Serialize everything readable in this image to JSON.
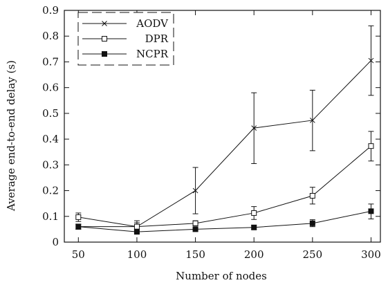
{
  "chart_data": {
    "type": "line",
    "title": "",
    "xlabel": "Number of nodes",
    "ylabel": "Average end-to-end delay (s)",
    "x": [
      50,
      100,
      150,
      200,
      250,
      300
    ],
    "xticks": [
      "50",
      "100",
      "150",
      "200",
      "250",
      "300"
    ],
    "yticks": [
      "0",
      "0.1",
      "0.2",
      "0.3",
      "0.4",
      "0.5",
      "0.6",
      "0.7",
      "0.8",
      "0.9"
    ],
    "xlim": [
      38,
      308
    ],
    "ylim": [
      0,
      0.9
    ],
    "grid": false,
    "legend_position": "top-left",
    "series": [
      {
        "name": "AODV",
        "marker": "x",
        "values": [
          0.06,
          0.06,
          0.2,
          0.443,
          0.473,
          0.705
        ],
        "error_low": [
          0.05,
          0.045,
          0.11,
          0.305,
          0.355,
          0.57
        ],
        "error_high": [
          0.07,
          0.075,
          0.29,
          0.58,
          0.59,
          0.84
        ]
      },
      {
        "name": "DPR",
        "marker": "open-square",
        "values": [
          0.097,
          0.06,
          0.073,
          0.113,
          0.18,
          0.373
        ],
        "error_low": [
          0.08,
          0.05,
          0.063,
          0.088,
          0.148,
          0.315
        ],
        "error_high": [
          0.113,
          0.083,
          0.083,
          0.138,
          0.213,
          0.43
        ]
      },
      {
        "name": "NCPR",
        "marker": "filled-square",
        "values": [
          0.06,
          0.04,
          0.05,
          0.057,
          0.073,
          0.12
        ],
        "error_low": [
          0.05,
          0.035,
          0.045,
          0.05,
          0.06,
          0.09
        ],
        "error_high": [
          0.07,
          0.045,
          0.055,
          0.065,
          0.087,
          0.148
        ]
      }
    ]
  }
}
